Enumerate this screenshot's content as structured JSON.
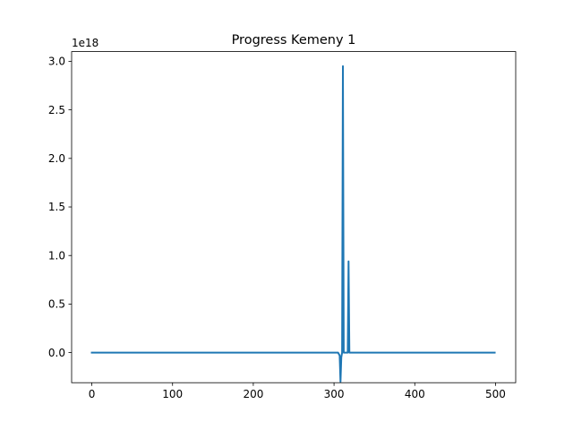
{
  "chart_data": {
    "type": "line",
    "title": "Progress Kemeny 1",
    "xlabel": "",
    "ylabel": "",
    "y_offset_label": "1e18",
    "xlim": [
      -25,
      525
    ],
    "ylim": [
      -0.31,
      3.1
    ],
    "x_ticks": [
      0,
      100,
      200,
      300,
      400,
      500
    ],
    "x_tick_labels": [
      "0",
      "100",
      "200",
      "300",
      "400",
      "500"
    ],
    "y_ticks": [
      0.0,
      0.5,
      1.0,
      1.5,
      2.0,
      2.5,
      3.0
    ],
    "y_tick_labels": [
      "0.0",
      "0.5",
      "1.0",
      "1.5",
      "2.0",
      "2.5",
      "3.0"
    ],
    "grid": false,
    "color": "#1f77b4",
    "series": [
      {
        "x": [
          0,
          305,
          307,
          308,
          309,
          310,
          311,
          312,
          313,
          314,
          315,
          316,
          317,
          318,
          319,
          320,
          321,
          322,
          330,
          400,
          499
        ],
        "y": [
          0.0,
          0.0,
          -0.03,
          -0.3,
          -0.05,
          0.0,
          2.95,
          0.0,
          0.0,
          0.0,
          0.0,
          0.0,
          0.0,
          0.94,
          0.0,
          0.0,
          0.0,
          0.0,
          0.0,
          0.0,
          0.0
        ]
      }
    ]
  }
}
